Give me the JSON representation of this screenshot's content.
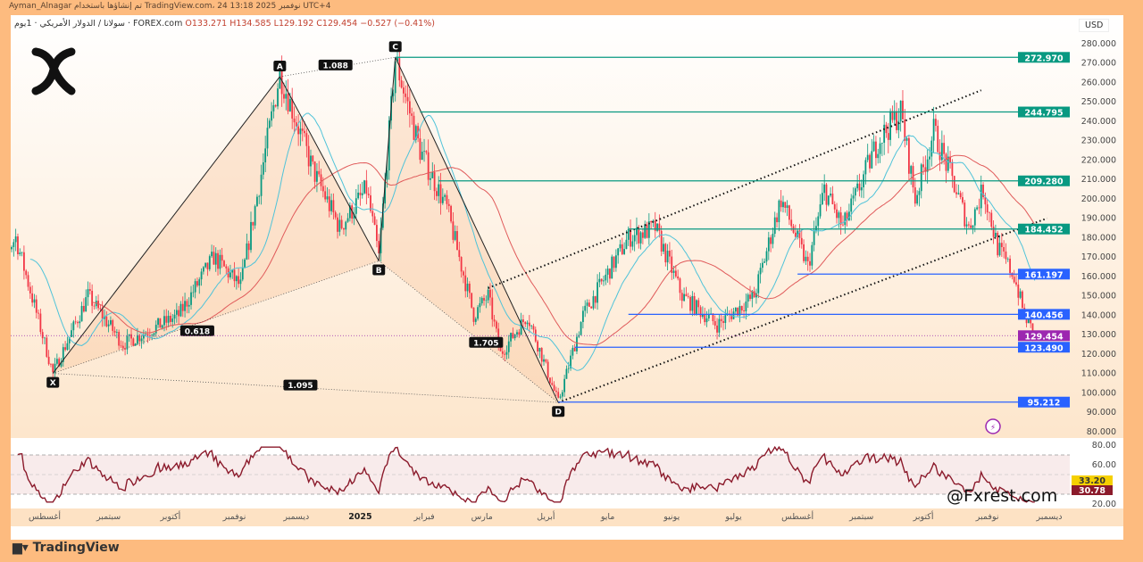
{
  "credit": "Ayman_Alnagar تم إنشاؤها باستخدام TradingView.com، 24 نوفمبر 2025 13:18 UTC+4",
  "header": {
    "symbol": "سولانا / الدولار الأمريكي · 1يوم · FOREX.com",
    "open": "O133.271",
    "high": "H134.585",
    "low": "L129.192",
    "close": "C129.454",
    "change": "−0.527 (−0.41%)"
  },
  "currency": "USD",
  "watermark": "@Fxrest.com",
  "brand": "TradingView",
  "colors": {
    "up": "#089981",
    "down": "#f23645",
    "level_green": "#089981",
    "level_blue": "#2962ff",
    "last_price": "#9c27b0",
    "rsi": "#8b1a2b",
    "ma_fast": "#4fc3d9",
    "ma_slow": "#e05a5a"
  },
  "chart_data": {
    "type": "candlestick",
    "ylim": [
      88,
      285
    ],
    "price_ticks": [
      "280.000",
      "270.000",
      "260.000",
      "250.000",
      "240.000",
      "230.000",
      "220.000",
      "210.000",
      "200.000",
      "190.000",
      "180.000",
      "170.000",
      "160.000",
      "150.000",
      "140.000",
      "130.000",
      "120.000",
      "110.000",
      "100.000",
      "90.000",
      "80.000"
    ],
    "time_ticks": [
      {
        "label": "أغسطس",
        "date": "2024-08-01"
      },
      {
        "label": "سبتمبر",
        "date": "2024-09-01"
      },
      {
        "label": "أكتوبر",
        "date": "2024-10-01"
      },
      {
        "label": "نوفمبر",
        "date": "2024-11-01"
      },
      {
        "label": "ديسمبر",
        "date": "2024-12-01"
      },
      {
        "label": "2025",
        "date": "2025-01-01",
        "bold": true
      },
      {
        "label": "فبراير",
        "date": "2025-02-01"
      },
      {
        "label": "مارس",
        "date": "2025-03-01"
      },
      {
        "label": "أبريل",
        "date": "2025-04-01"
      },
      {
        "label": "مايو",
        "date": "2025-05-01"
      },
      {
        "label": "يونيو",
        "date": "2025-06-01"
      },
      {
        "label": "يوليو",
        "date": "2025-07-01"
      },
      {
        "label": "أغسطس",
        "date": "2025-08-01"
      },
      {
        "label": "سبتمبر",
        "date": "2025-09-01"
      },
      {
        "label": "أكتوبر",
        "date": "2025-10-01"
      },
      {
        "label": "نوفمبر",
        "date": "2025-11-01"
      },
      {
        "label": "ديسمبر",
        "date": "2025-12-01"
      }
    ],
    "price_path": [
      [
        "2024-07-05",
        160
      ],
      [
        "2024-07-18",
        180
      ],
      [
        "2024-08-05",
        110
      ],
      [
        "2024-08-22",
        150
      ],
      [
        "2024-09-08",
        125
      ],
      [
        "2024-10-05",
        140
      ],
      [
        "2024-10-22",
        170
      ],
      [
        "2024-11-04",
        155
      ],
      [
        "2024-11-23",
        265
      ],
      [
        "2024-12-09",
        215
      ],
      [
        "2024-12-22",
        185
      ],
      [
        "2025-01-04",
        205
      ],
      [
        "2025-01-10",
        170
      ],
      [
        "2025-01-18",
        272
      ],
      [
        "2025-01-30",
        225
      ],
      [
        "2025-02-12",
        195
      ],
      [
        "2025-02-25",
        140
      ],
      [
        "2025-03-04",
        150
      ],
      [
        "2025-03-10",
        120
      ],
      [
        "2025-03-23",
        140
      ],
      [
        "2025-04-07",
        95
      ],
      [
        "2025-04-19",
        140
      ],
      [
        "2025-05-11",
        180
      ],
      [
        "2025-05-24",
        185
      ],
      [
        "2025-06-06",
        150
      ],
      [
        "2025-06-23",
        135
      ],
      [
        "2025-07-11",
        150
      ],
      [
        "2025-07-24",
        200
      ],
      [
        "2025-08-06",
        165
      ],
      [
        "2025-08-14",
        205
      ],
      [
        "2025-08-23",
        185
      ],
      [
        "2025-09-09",
        230
      ],
      [
        "2025-09-20",
        245
      ],
      [
        "2025-09-27",
        200
      ],
      [
        "2025-10-06",
        235
      ],
      [
        "2025-10-15",
        210
      ],
      [
        "2025-10-23",
        185
      ],
      [
        "2025-10-30",
        205
      ],
      [
        "2025-11-06",
        175
      ],
      [
        "2025-11-14",
        160
      ],
      [
        "2025-11-19",
        140
      ],
      [
        "2025-11-24",
        129.454
      ]
    ],
    "levels": [
      {
        "price": 272.97,
        "label": "272.970",
        "color": "green",
        "from": "2025-01-18"
      },
      {
        "price": 244.795,
        "label": "244.795",
        "color": "green",
        "from": "2025-01-30"
      },
      {
        "price": 209.28,
        "label": "209.280",
        "color": "green",
        "from": "2025-02-08"
      },
      {
        "price": 184.452,
        "label": "184.452",
        "color": "green",
        "from": "2025-05-11"
      },
      {
        "price": 161.197,
        "label": "161.197",
        "color": "blue",
        "from": "2025-08-01"
      },
      {
        "price": 140.456,
        "label": "140.456",
        "color": "blue",
        "from": "2025-05-11"
      },
      {
        "price": 123.49,
        "label": "123.490",
        "color": "blue",
        "from": "2025-04-15"
      },
      {
        "price": 95.212,
        "label": "95.212",
        "color": "blue",
        "from": "2025-04-07"
      }
    ],
    "last_price": {
      "price": 129.454,
      "label": "129.454"
    },
    "harmonic": {
      "points": [
        {
          "name": "X",
          "date": "2024-08-05",
          "price": 110
        },
        {
          "name": "A",
          "date": "2024-11-23",
          "price": 263
        },
        {
          "name": "B",
          "date": "2025-01-10",
          "price": 168
        },
        {
          "name": "C",
          "date": "2025-01-18",
          "price": 273
        },
        {
          "name": "D",
          "date": "2025-04-07",
          "price": 95
        }
      ],
      "ratios": [
        {
          "label": "1.088",
          "date": "2024-12-20",
          "price": 269
        },
        {
          "label": "0.618",
          "date": "2024-10-14",
          "price": 132
        },
        {
          "label": "1.705",
          "date": "2025-03-03",
          "price": 126
        },
        {
          "label": "1.095",
          "date": "2024-12-03",
          "price": 104
        }
      ]
    },
    "channel": [
      {
        "from": [
          "2025-03-04",
          154
        ],
        "to": [
          "2025-10-29",
          256
        ]
      },
      {
        "from": [
          "2025-04-07",
          95
        ],
        "to": [
          "2025-11-30",
          190
        ]
      }
    ],
    "rsi": {
      "ticks": [
        "80.00",
        "60.00",
        "20.00"
      ],
      "values_labels": [
        {
          "label": "33.20",
          "color": "#f5d000"
        },
        {
          "label": "30.78",
          "color": "#8b1a2b"
        }
      ],
      "bands": [
        70,
        30
      ],
      "ylim": [
        20,
        80
      ]
    }
  }
}
